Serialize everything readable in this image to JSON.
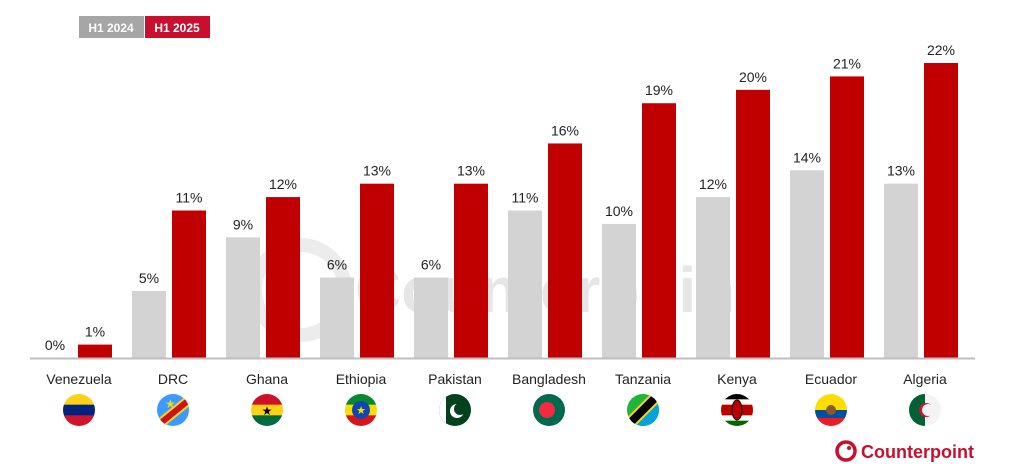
{
  "chart_data": {
    "type": "bar",
    "title": "",
    "xlabel": "",
    "ylabel": "",
    "ylim": [
      0,
      22
    ],
    "grid": false,
    "legend_position": "top-left",
    "categories": [
      "Venezuela",
      "DRC",
      "Ghana",
      "Ethiopia",
      "Pakistan",
      "Bangladesh",
      "Tanzania",
      "Kenya",
      "Ecuador",
      "Algeria"
    ],
    "series": [
      {
        "name": "H1 2024",
        "color": "#d3d3d3",
        "values": [
          0,
          5,
          9,
          6,
          6,
          11,
          10,
          12,
          14,
          13
        ]
      },
      {
        "name": "H1 2025",
        "color": "#c00000",
        "values": [
          1,
          11,
          12,
          13,
          13,
          16,
          19,
          20,
          21,
          22
        ]
      }
    ],
    "value_suffix": "%"
  },
  "legend_colors": {
    "H1 2024": "#a6a6a6",
    "H1 2025": "#c8102e"
  },
  "watermark": "Counterpoint",
  "logo": {
    "text": "Counterpoint",
    "color": "#c8102e"
  }
}
